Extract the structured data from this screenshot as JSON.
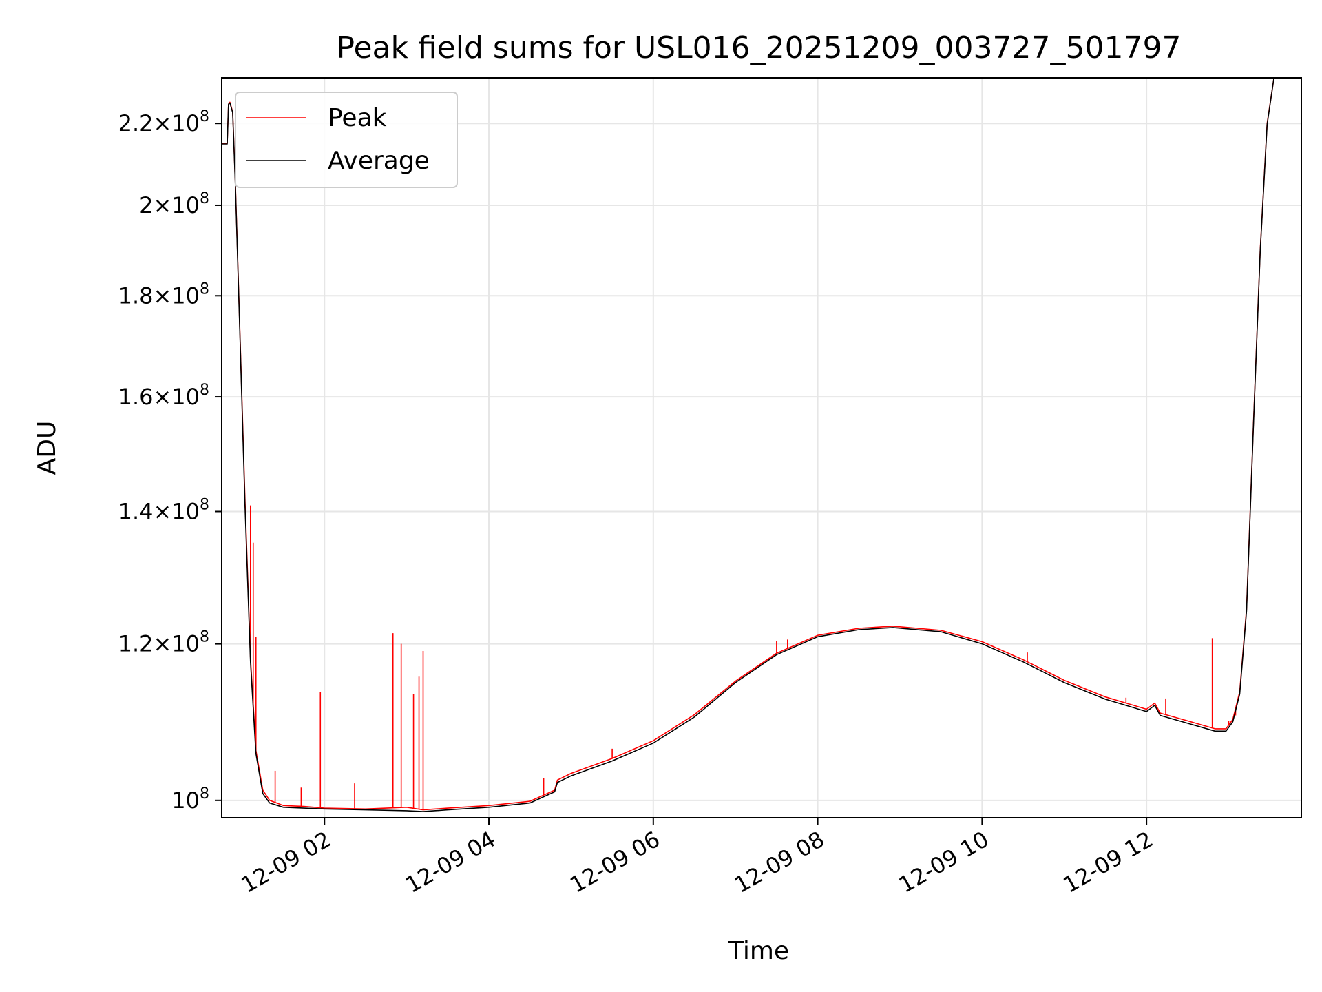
{
  "chart_data": {
    "type": "line",
    "title": "Peak field sums for USL016_20251209_003727_501797",
    "xlabel": "Time",
    "ylabel": "ADU",
    "y_scale": "log",
    "grid": true,
    "legend_position": "top-left",
    "xlim": [
      "2025-12-09T00:45",
      "2025-12-09T13:53"
    ],
    "ylim": [
      98000000,
      232000000
    ],
    "x_ticks": [
      "2025-12-09T02:00",
      "2025-12-09T04:00",
      "2025-12-09T06:00",
      "2025-12-09T08:00",
      "2025-12-09T10:00",
      "2025-12-09T12:00"
    ],
    "x_tick_labels": [
      "12-09 02",
      "12-09 04",
      "12-09 06",
      "12-09 08",
      "12-09 10",
      "12-09 12"
    ],
    "y_ticks": [
      {
        "value": 100000000,
        "mantissa": "",
        "exp": "8"
      },
      {
        "value": 120000000,
        "mantissa": "1.2",
        "exp": "8"
      },
      {
        "value": 140000000,
        "mantissa": "1.4",
        "exp": "8"
      },
      {
        "value": 160000000,
        "mantissa": "1.6",
        "exp": "8"
      },
      {
        "value": 180000000,
        "mantissa": "1.8",
        "exp": "8"
      },
      {
        "value": 200000000,
        "mantissa": "2",
        "exp": "8"
      },
      {
        "value": 220000000,
        "mantissa": "2.2",
        "exp": "8"
      }
    ],
    "series": [
      {
        "name": "Peak",
        "color": "#ff0000",
        "x": [
          "2025-12-09T00:45",
          "2025-12-09T00:49",
          "2025-12-09T00:50",
          "2025-12-09T00:51",
          "2025-12-09T00:53",
          "2025-12-09T00:55",
          "2025-12-09T00:58",
          "2025-12-09T01:02",
          "2025-12-09T01:06",
          "2025-12-09T01:10",
          "2025-12-09T01:15",
          "2025-12-09T01:20",
          "2025-12-09T01:30",
          "2025-12-09T01:45",
          "2025-12-09T02:00",
          "2025-12-09T02:30",
          "2025-12-09T03:00",
          "2025-12-09T03:12",
          "2025-12-09T03:30",
          "2025-12-09T04:00",
          "2025-12-09T04:30",
          "2025-12-09T04:48",
          "2025-12-09T04:50",
          "2025-12-09T05:00",
          "2025-12-09T05:30",
          "2025-12-09T06:00",
          "2025-12-09T06:30",
          "2025-12-09T07:00",
          "2025-12-09T07:30",
          "2025-12-09T08:00",
          "2025-12-09T08:30",
          "2025-12-09T08:55",
          "2025-12-09T09:30",
          "2025-12-09T10:00",
          "2025-12-09T10:30",
          "2025-12-09T11:00",
          "2025-12-09T11:30",
          "2025-12-09T12:00",
          "2025-12-09T12:06",
          "2025-12-09T12:10",
          "2025-12-09T12:30",
          "2025-12-09T12:50",
          "2025-12-09T12:58",
          "2025-12-09T13:03",
          "2025-12-09T13:08",
          "2025-12-09T13:13",
          "2025-12-09T13:18",
          "2025-12-09T13:23",
          "2025-12-09T13:28",
          "2025-12-09T13:33"
        ],
        "values": [
          215000000,
          215000000,
          225000000,
          225500000,
          223000000,
          205000000,
          175000000,
          142000000,
          118000000,
          106000000,
          101200000,
          100000000,
          99400000,
          99300000,
          99100000,
          99000000,
          99200000,
          98900000,
          99100000,
          99400000,
          99900000,
          101200000,
          102400000,
          103200000,
          105000000,
          107200000,
          110500000,
          114900000,
          118700000,
          121200000,
          122200000,
          122500000,
          121900000,
          120300000,
          117800000,
          115000000,
          112800000,
          111200000,
          112000000,
          110700000,
          109700000,
          108700000,
          108700000,
          109900000,
          113500000,
          125000000,
          155000000,
          190000000,
          220000000,
          232000000
        ],
        "spikes": [
          {
            "x": "2025-12-09T01:06",
            "value": 141000000
          },
          {
            "x": "2025-12-09T01:08",
            "value": 135000000
          },
          {
            "x": "2025-12-09T01:10",
            "value": 121000000
          },
          {
            "x": "2025-12-09T01:24",
            "value": 103500000
          },
          {
            "x": "2025-12-09T01:43",
            "value": 101500000
          },
          {
            "x": "2025-12-09T01:57",
            "value": 113500000
          },
          {
            "x": "2025-12-09T02:22",
            "value": 102000000
          },
          {
            "x": "2025-12-09T02:50",
            "value": 121500000
          },
          {
            "x": "2025-12-09T02:56",
            "value": 120000000
          },
          {
            "x": "2025-12-09T03:05",
            "value": 113200000
          },
          {
            "x": "2025-12-09T03:09",
            "value": 115500000
          },
          {
            "x": "2025-12-09T03:12",
            "value": 119000000
          },
          {
            "x": "2025-12-09T04:40",
            "value": 102600000
          },
          {
            "x": "2025-12-09T05:30",
            "value": 106200000
          },
          {
            "x": "2025-12-09T07:30",
            "value": 120400000
          },
          {
            "x": "2025-12-09T07:38",
            "value": 120600000
          },
          {
            "x": "2025-12-09T10:33",
            "value": 118800000
          },
          {
            "x": "2025-12-09T11:45",
            "value": 112700000
          },
          {
            "x": "2025-12-09T12:14",
            "value": 112600000
          },
          {
            "x": "2025-12-09T12:48",
            "value": 120800000
          },
          {
            "x": "2025-12-09T13:00",
            "value": 109700000
          },
          {
            "x": "2025-12-09T13:05",
            "value": 110400000
          }
        ]
      },
      {
        "name": "Average",
        "color": "#000000",
        "x": [
          "2025-12-09T00:45",
          "2025-12-09T00:49",
          "2025-12-09T00:50",
          "2025-12-09T00:51",
          "2025-12-09T00:53",
          "2025-12-09T00:55",
          "2025-12-09T00:58",
          "2025-12-09T01:02",
          "2025-12-09T01:06",
          "2025-12-09T01:10",
          "2025-12-09T01:15",
          "2025-12-09T01:20",
          "2025-12-09T01:30",
          "2025-12-09T01:45",
          "2025-12-09T02:00",
          "2025-12-09T02:30",
          "2025-12-09T03:00",
          "2025-12-09T03:12",
          "2025-12-09T03:30",
          "2025-12-09T04:00",
          "2025-12-09T04:30",
          "2025-12-09T04:48",
          "2025-12-09T04:50",
          "2025-12-09T05:00",
          "2025-12-09T05:30",
          "2025-12-09T06:00",
          "2025-12-09T06:30",
          "2025-12-09T07:00",
          "2025-12-09T07:30",
          "2025-12-09T08:00",
          "2025-12-09T08:30",
          "2025-12-09T08:55",
          "2025-12-09T09:30",
          "2025-12-09T10:00",
          "2025-12-09T10:30",
          "2025-12-09T11:00",
          "2025-12-09T11:30",
          "2025-12-09T12:00",
          "2025-12-09T12:06",
          "2025-12-09T12:10",
          "2025-12-09T12:30",
          "2025-12-09T12:50",
          "2025-12-09T12:58",
          "2025-12-09T13:03",
          "2025-12-09T13:08",
          "2025-12-09T13:13",
          "2025-12-09T13:18",
          "2025-12-09T13:23",
          "2025-12-09T13:28",
          "2025-12-09T13:33"
        ],
        "values": [
          214800000,
          214800000,
          225000000,
          225300000,
          222800000,
          204500000,
          174500000,
          141000000,
          117500000,
          105600000,
          100800000,
          99700000,
          99200000,
          99100000,
          99000000,
          98900000,
          98800000,
          98700000,
          98900000,
          99200000,
          99700000,
          101000000,
          102100000,
          102900000,
          104700000,
          106900000,
          110200000,
          114700000,
          118500000,
          121000000,
          122000000,
          122300000,
          121700000,
          120000000,
          117500000,
          114700000,
          112500000,
          110900000,
          111700000,
          110400000,
          109400000,
          108400000,
          108400000,
          109600000,
          113200000,
          124700000,
          154700000,
          189700000,
          219700000,
          232000000
        ]
      }
    ]
  }
}
